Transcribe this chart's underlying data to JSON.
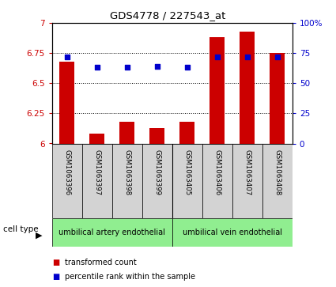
{
  "title": "GDS4778 / 227543_at",
  "samples": [
    "GSM1063396",
    "GSM1063397",
    "GSM1063398",
    "GSM1063399",
    "GSM1063405",
    "GSM1063406",
    "GSM1063407",
    "GSM1063408"
  ],
  "red_values": [
    6.68,
    6.08,
    6.18,
    6.13,
    6.18,
    6.88,
    6.93,
    6.75
  ],
  "blue_values": [
    72,
    63,
    63,
    64,
    63,
    72,
    72,
    72
  ],
  "ylim_left": [
    6.0,
    7.0
  ],
  "ylim_right": [
    0,
    100
  ],
  "yticks_left": [
    6.0,
    6.25,
    6.5,
    6.75,
    7.0
  ],
  "yticks_right": [
    0,
    25,
    50,
    75,
    100
  ],
  "yticklabels_left": [
    "6",
    "6.25",
    "6.5",
    "6.75",
    "7"
  ],
  "yticklabels_right": [
    "0",
    "25",
    "50",
    "75",
    "100%"
  ],
  "cell_type_groups": [
    {
      "label": "umbilical artery endothelial",
      "start": 0,
      "end": 3,
      "color": "#90EE90"
    },
    {
      "label": "umbilical vein endothelial",
      "start": 4,
      "end": 7,
      "color": "#90EE90"
    }
  ],
  "legend_items": [
    {
      "label": "transformed count",
      "color": "#CC0000"
    },
    {
      "label": "percentile rank within the sample",
      "color": "#0000CC"
    }
  ],
  "bar_color": "#CC0000",
  "dot_color": "#0000CC",
  "bar_width": 0.5,
  "background_color": "#ffffff",
  "tick_color_left": "#CC0000",
  "tick_color_right": "#0000CC",
  "label_bg": "#d3d3d3",
  "cell_type_label": "cell type"
}
